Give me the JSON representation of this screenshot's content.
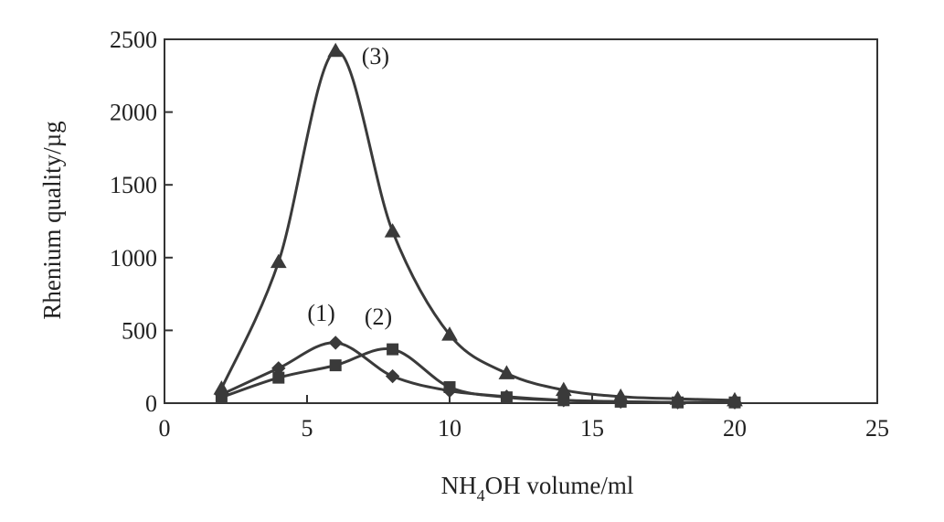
{
  "chart_data": {
    "type": "line",
    "title": "",
    "xlabel": {
      "prefix": "NH",
      "sub": "4",
      "suffix": "OH volume/ml"
    },
    "ylabel": "Rhenium quality/µg",
    "xlim": [
      0,
      25
    ],
    "ylim": [
      0,
      2500
    ],
    "xticks": [
      0,
      5,
      10,
      15,
      20,
      25
    ],
    "yticks": [
      0,
      500,
      1000,
      1500,
      2000,
      2500
    ],
    "grid": false,
    "legend": "none",
    "series": [
      {
        "name": "(1)",
        "marker": "diamond",
        "label_at": [
          5.5,
          565
        ],
        "points": [
          [
            2,
            60
          ],
          [
            4,
            240
          ],
          [
            6,
            415
          ],
          [
            8,
            185
          ],
          [
            10,
            85
          ],
          [
            12,
            45
          ],
          [
            14,
            20
          ],
          [
            16,
            10
          ],
          [
            18,
            5
          ],
          [
            20,
            5
          ]
        ]
      },
      {
        "name": "(2)",
        "marker": "square",
        "label_at": [
          7.5,
          540
        ],
        "points": [
          [
            2,
            40
          ],
          [
            4,
            175
          ],
          [
            6,
            260
          ],
          [
            8,
            370
          ],
          [
            10,
            110
          ],
          [
            12,
            40
          ],
          [
            14,
            20
          ],
          [
            16,
            10
          ],
          [
            18,
            5
          ],
          [
            20,
            5
          ]
        ]
      },
      {
        "name": "(3)",
        "marker": "triangle",
        "label_at": [
          7.4,
          2330
        ],
        "points": [
          [
            2,
            100
          ],
          [
            4,
            970
          ],
          [
            6,
            2420
          ],
          [
            8,
            1180
          ],
          [
            10,
            470
          ],
          [
            12,
            205
          ],
          [
            14,
            90
          ],
          [
            16,
            45
          ],
          [
            18,
            30
          ],
          [
            20,
            20
          ]
        ]
      }
    ]
  }
}
